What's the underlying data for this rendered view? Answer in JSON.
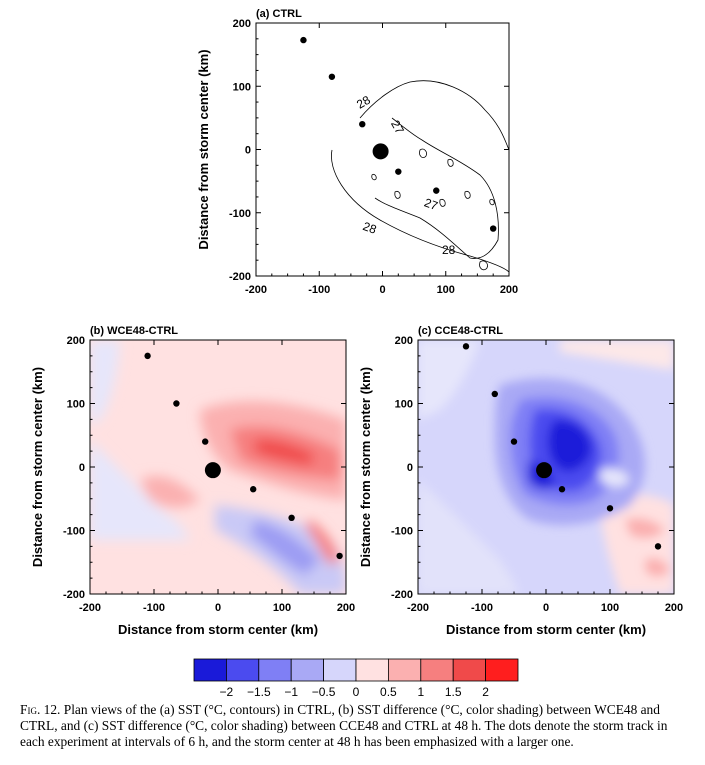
{
  "chart_data": [
    {
      "type": "contour",
      "panel_label": "(a) CTRL",
      "xlabel": "",
      "ylabel": "Distance from storm center (km)",
      "xlim": [
        -200,
        200
      ],
      "ylim": [
        -200,
        200
      ],
      "xticks": [
        "-200",
        "-100",
        "0",
        "100",
        "200"
      ],
      "yticks": [
        "200",
        "100",
        "0",
        "-100",
        "-200"
      ],
      "contour_labels": [
        "28",
        "27",
        "27",
        "28",
        "28"
      ],
      "storm_track": [
        [
          -125,
          173
        ],
        [
          -80,
          115
        ],
        [
          -32,
          40
        ],
        [
          25,
          -35
        ],
        [
          85,
          -65
        ],
        [
          175,
          -125
        ]
      ],
      "storm_center_48h": [
        -3,
        -3
      ]
    },
    {
      "type": "heatmap",
      "panel_label": "(b) WCE48-CTRL",
      "xlabel": "Distance from storm center (km)",
      "ylabel": "Distance from storm center (km)",
      "xlim": [
        -200,
        200
      ],
      "ylim": [
        -200,
        200
      ],
      "xticks": [
        "-200",
        "-100",
        "0",
        "100",
        "200"
      ],
      "yticks": [
        "200",
        "100",
        "0",
        "-100",
        "-200"
      ],
      "storm_track": [
        [
          -110,
          175
        ],
        [
          -65,
          100
        ],
        [
          -20,
          40
        ],
        [
          55,
          -35
        ],
        [
          115,
          -80
        ],
        [
          190,
          -140
        ]
      ],
      "storm_center_48h": [
        -8,
        -5
      ]
    },
    {
      "type": "heatmap",
      "panel_label": "(c) CCE48-CTRL",
      "xlabel": "Distance from storm center (km)",
      "ylabel": "Distance from storm center (km)",
      "xlim": [
        -200,
        200
      ],
      "ylim": [
        -200,
        200
      ],
      "xticks": [
        "-200",
        "-100",
        "0",
        "100",
        "200"
      ],
      "yticks": [
        "200",
        "100",
        "0",
        "-100",
        "-200"
      ],
      "storm_track": [
        [
          -125,
          190
        ],
        [
          -80,
          115
        ],
        [
          -50,
          40
        ],
        [
          25,
          -35
        ],
        [
          100,
          -65
        ],
        [
          175,
          -125
        ]
      ],
      "storm_center_48h": [
        -3,
        -5
      ]
    }
  ],
  "colorbar": {
    "ticks": [
      "−2",
      "−1.5",
      "−1",
      "−0.5",
      "0",
      "0.5",
      "1",
      "1.5",
      "2"
    ],
    "colors": [
      "#1a1ad9",
      "#4b4bef",
      "#7f7ff5",
      "#a9a9f5",
      "#d6d6fb",
      "#ffe1e1",
      "#fbb0b0",
      "#f67f7f",
      "#f04a4a",
      "#ff1e1e"
    ]
  },
  "caption": {
    "fig": "Fig. 12.",
    "text": "Plan views of the (a) SST (°C, contours) in CTRL, (b) SST difference (°C, color shading) between WCE48 and CTRL, and (c) SST difference (°C, color shading) between CCE48 and CTRL at 48 h. The dots denote the storm track in each experiment at intervals of 6 h, and the storm center at 48 h has been emphasized with a larger one."
  }
}
